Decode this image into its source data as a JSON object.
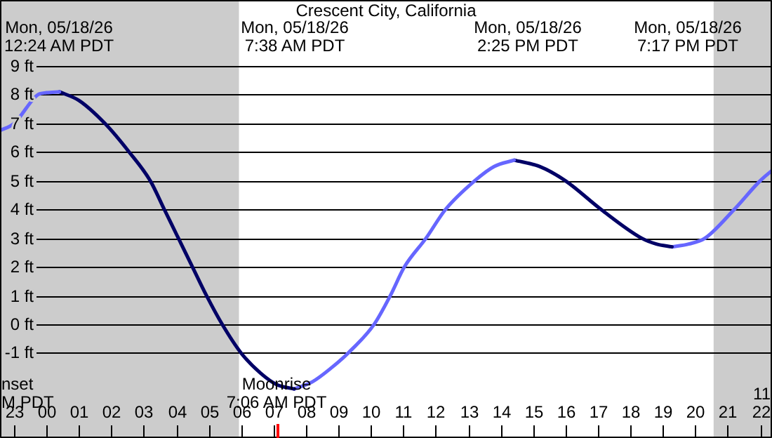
{
  "chart_data": {
    "type": "line",
    "title": "Crescent City, California",
    "xlim": [
      "--05-17T22:34",
      "--05-18T22:22"
    ],
    "ylim": [
      -3.96,
      11.3
    ],
    "xticks": [
      {
        "value": "--05-17T23:00",
        "label": "23"
      },
      {
        "value": "--05-18T00:00",
        "label": "00"
      },
      {
        "value": "--05-18T01:00",
        "label": "01"
      },
      {
        "value": "--05-18T02:00",
        "label": "02"
      },
      {
        "value": "--05-18T03:00",
        "label": "03"
      },
      {
        "value": "--05-18T04:00",
        "label": "04"
      },
      {
        "value": "--05-18T05:00",
        "label": "05"
      },
      {
        "value": "--05-18T06:00",
        "label": "06"
      },
      {
        "value": "--05-18T07:00",
        "label": "07"
      },
      {
        "value": "--05-18T08:00",
        "label": "08"
      },
      {
        "value": "--05-18T09:00",
        "label": "09"
      },
      {
        "value": "--05-18T10:00",
        "label": "10"
      },
      {
        "value": "--05-18T11:00",
        "label": "11"
      },
      {
        "value": "--05-18T12:00",
        "label": "12"
      },
      {
        "value": "--05-18T13:00",
        "label": "13"
      },
      {
        "value": "--05-18T14:00",
        "label": "14"
      },
      {
        "value": "--05-18T15:00",
        "label": "15"
      },
      {
        "value": "--05-18T16:00",
        "label": "16"
      },
      {
        "value": "--05-18T17:00",
        "label": "17"
      },
      {
        "value": "--05-18T18:00",
        "label": "18"
      },
      {
        "value": "--05-18T19:00",
        "label": "19"
      },
      {
        "value": "--05-18T20:00",
        "label": "20"
      },
      {
        "value": "--05-18T21:00",
        "label": "21"
      },
      {
        "value": "--05-18T22:00",
        "label": "22"
      }
    ],
    "yticks": [
      {
        "value": -1,
        "label": "-1 ft"
      },
      {
        "value": 0,
        "label": "0 ft"
      },
      {
        "value": 1,
        "label": "1 ft"
      },
      {
        "value": 2,
        "label": "2 ft"
      },
      {
        "value": 3,
        "label": "3 ft"
      },
      {
        "value": 4,
        "label": "4 ft"
      },
      {
        "value": 5,
        "label": "5 ft"
      },
      {
        "value": 6,
        "label": "6 ft"
      },
      {
        "value": 7,
        "label": "7 ft"
      },
      {
        "value": 8,
        "label": "8 ft"
      },
      {
        "value": 9,
        "label": "9 ft"
      }
    ],
    "grid": "y",
    "marker": "none",
    "line_style": "solid",
    "series": [
      {
        "color": "#6666ff",
        "x": [
          "--05-17T22:34",
          "--05-17T23:00",
          "--05-17T23:44",
          "--05-18T00:00",
          "--05-18T00:24"
        ],
        "values": [
          6.75,
          7.0,
          8.0,
          8.07,
          8.1
        ]
      },
      {
        "color": "#000066",
        "x": [
          "--05-18T00:24",
          "--05-18T01:00",
          "--05-18T01:48",
          "--05-18T02:33",
          "--05-18T03:12",
          "--05-18T03:38",
          "--05-18T04:04",
          "--05-18T04:30",
          "--05-18T04:56",
          "--05-18T05:25",
          "--05-18T06:00",
          "--05-18T06:36",
          "--05-18T07:06",
          "--05-18T07:38"
        ],
        "values": [
          8.1,
          7.8,
          7.0,
          6.0,
          5.0,
          4.0,
          3.0,
          2.0,
          1.0,
          0.0,
          -1.0,
          -1.7,
          -2.1,
          -2.25
        ]
      },
      {
        "color": "#6666ff",
        "x": [
          "--05-18T07:38",
          "--05-18T08:12",
          "--05-18T08:48",
          "--05-18T09:18",
          "--05-18T10:06",
          "--05-18T10:36",
          "--05-18T11:02",
          "--05-18T11:42",
          "--05-18T12:18",
          "--05-18T13:12",
          "--05-18T13:48",
          "--05-18T14:25"
        ],
        "values": [
          -2.25,
          -2.0,
          -1.5,
          -1.0,
          0.0,
          1.0,
          2.0,
          3.0,
          4.0,
          5.0,
          5.5,
          5.72
        ]
      },
      {
        "color": "#000066",
        "x": [
          "--05-18T14:25",
          "--05-18T15:12",
          "--05-18T16:00",
          "--05-18T17:06",
          "--05-18T18:21",
          "--05-18T18:48",
          "--05-18T19:17"
        ],
        "values": [
          5.72,
          5.5,
          5.0,
          4.0,
          3.0,
          2.8,
          2.7
        ]
      },
      {
        "color": "#6666ff",
        "x": [
          "--05-18T19:17",
          "--05-18T19:48",
          "--05-18T20:18",
          "--05-18T21:12",
          "--05-18T22:00",
          "--05-18T22:22"
        ],
        "values": [
          2.7,
          2.8,
          3.0,
          4.0,
          5.0,
          5.36
        ]
      }
    ],
    "bands": [
      {
        "axis": "x",
        "from": "--05-17T22:34",
        "to": "--05-18T05:56",
        "color": "#cccccc"
      },
      {
        "axis": "x",
        "from": "--05-18T20:34",
        "to": "--05-18T22:22",
        "color": "#cccccc"
      }
    ],
    "annotations": [
      "Mon, 05/18/26\n12:24 AM PDT",
      "Mon, 05/18/26\n7:38 AM PDT",
      "Mon, 05/18/26\n2:25 PM PDT",
      "Mon, 05/18/26\n7:17 PM PDT",
      "nset\nM PDT",
      "11",
      "Moonrise\n7:06 AM PDT"
    ]
  }
}
